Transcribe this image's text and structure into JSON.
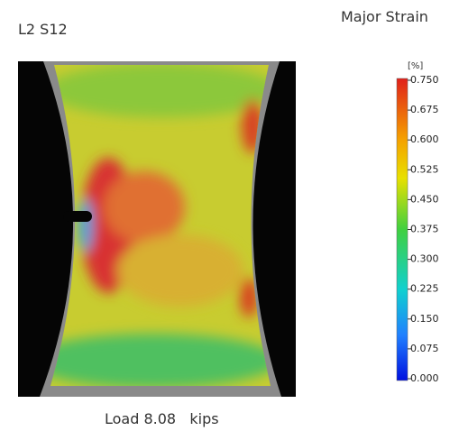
{
  "header": {
    "title": "L2 S12",
    "quantity": "Major Strain"
  },
  "colorbar": {
    "unit": "[%]",
    "lim": [
      0,
      0.75
    ],
    "ticks": [
      {
        "value": 0.75,
        "label": "0.750"
      },
      {
        "value": 0.675,
        "label": "0.675"
      },
      {
        "value": 0.6,
        "label": "0.600"
      },
      {
        "value": 0.525,
        "label": "0.525"
      },
      {
        "value": 0.45,
        "label": "0.450"
      },
      {
        "value": 0.375,
        "label": "0.375"
      },
      {
        "value": 0.3,
        "label": "0.300"
      },
      {
        "value": 0.225,
        "label": "0.225"
      },
      {
        "value": 0.15,
        "label": "0.150"
      },
      {
        "value": 0.075,
        "label": "0.075"
      },
      {
        "value": 0,
        "label": "0.000"
      }
    ]
  },
  "caption": "Load 8.08   kips"
}
